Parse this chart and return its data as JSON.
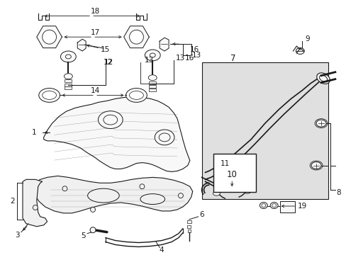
{
  "bg_color": "#ffffff",
  "line_color": "#1a1a1a",
  "fig_width": 4.89,
  "fig_height": 3.6,
  "dpi": 100,
  "label_color": "#000000",
  "box7_color": "#e8e8e8",
  "part_fill": "#f8f8f8"
}
